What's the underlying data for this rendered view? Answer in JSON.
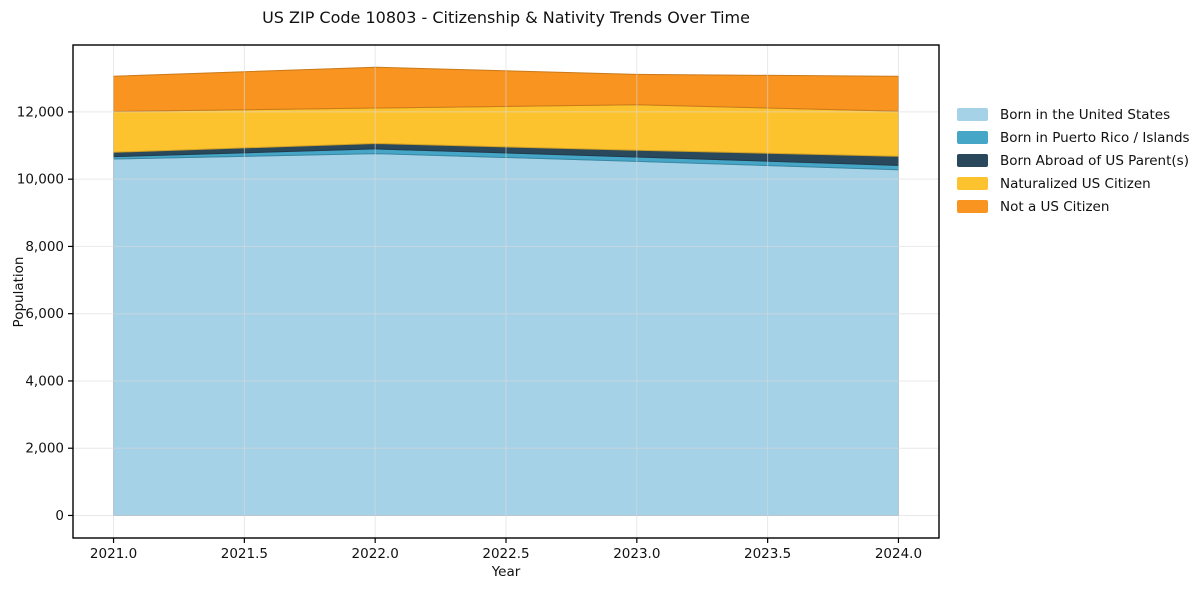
{
  "chart_data": {
    "type": "area",
    "stacked": true,
    "title": "US ZIP Code 10803 - Citizenship & Nativity Trends Over Time",
    "xlabel": "Year",
    "ylabel": "Population",
    "x": [
      2021,
      2022,
      2023,
      2024
    ],
    "series": [
      {
        "name": "Born in the United States",
        "color": "#A6D2E8",
        "values": [
          10600,
          10760,
          10530,
          10280
        ]
      },
      {
        "name": "Born in Puerto Rico / Islands",
        "color": "#45A6C7",
        "values": [
          70,
          140,
          130,
          130
        ]
      },
      {
        "name": "Born Abroad of US Parent(s)",
        "color": "#29485C",
        "values": [
          130,
          160,
          200,
          270
        ]
      },
      {
        "name": "Naturalized US Citizen",
        "color": "#FDC32E",
        "values": [
          1215,
          1055,
          1355,
          1340
        ]
      },
      {
        "name": "Not a US Citizen",
        "color": "#F8941F",
        "values": [
          1045,
          1215,
          900,
          1040
        ]
      }
    ],
    "stack_totals": [
      13060,
      13330,
      13115,
      13060
    ],
    "xticks": [
      2021.0,
      2021.5,
      2022.0,
      2022.5,
      2023.0,
      2023.5,
      2024.0
    ],
    "xtick_labels": [
      "2021.0",
      "2021.5",
      "2022.0",
      "2022.5",
      "2023.0",
      "2023.5",
      "2024.0"
    ],
    "yticks": [
      0,
      2000,
      4000,
      6000,
      8000,
      10000,
      12000
    ],
    "ytick_labels": [
      "0",
      "2,000",
      "4,000",
      "6,000",
      "8,000",
      "10,000",
      "12,000"
    ],
    "xlim": [
      2020.845,
      2024.155
    ],
    "ylim": [
      -670,
      13990
    ],
    "grid": true,
    "grid_color": "#d9d9d9",
    "frame_color": "#000000",
    "text_color": "#111111",
    "legend_position": "right-outside"
  }
}
